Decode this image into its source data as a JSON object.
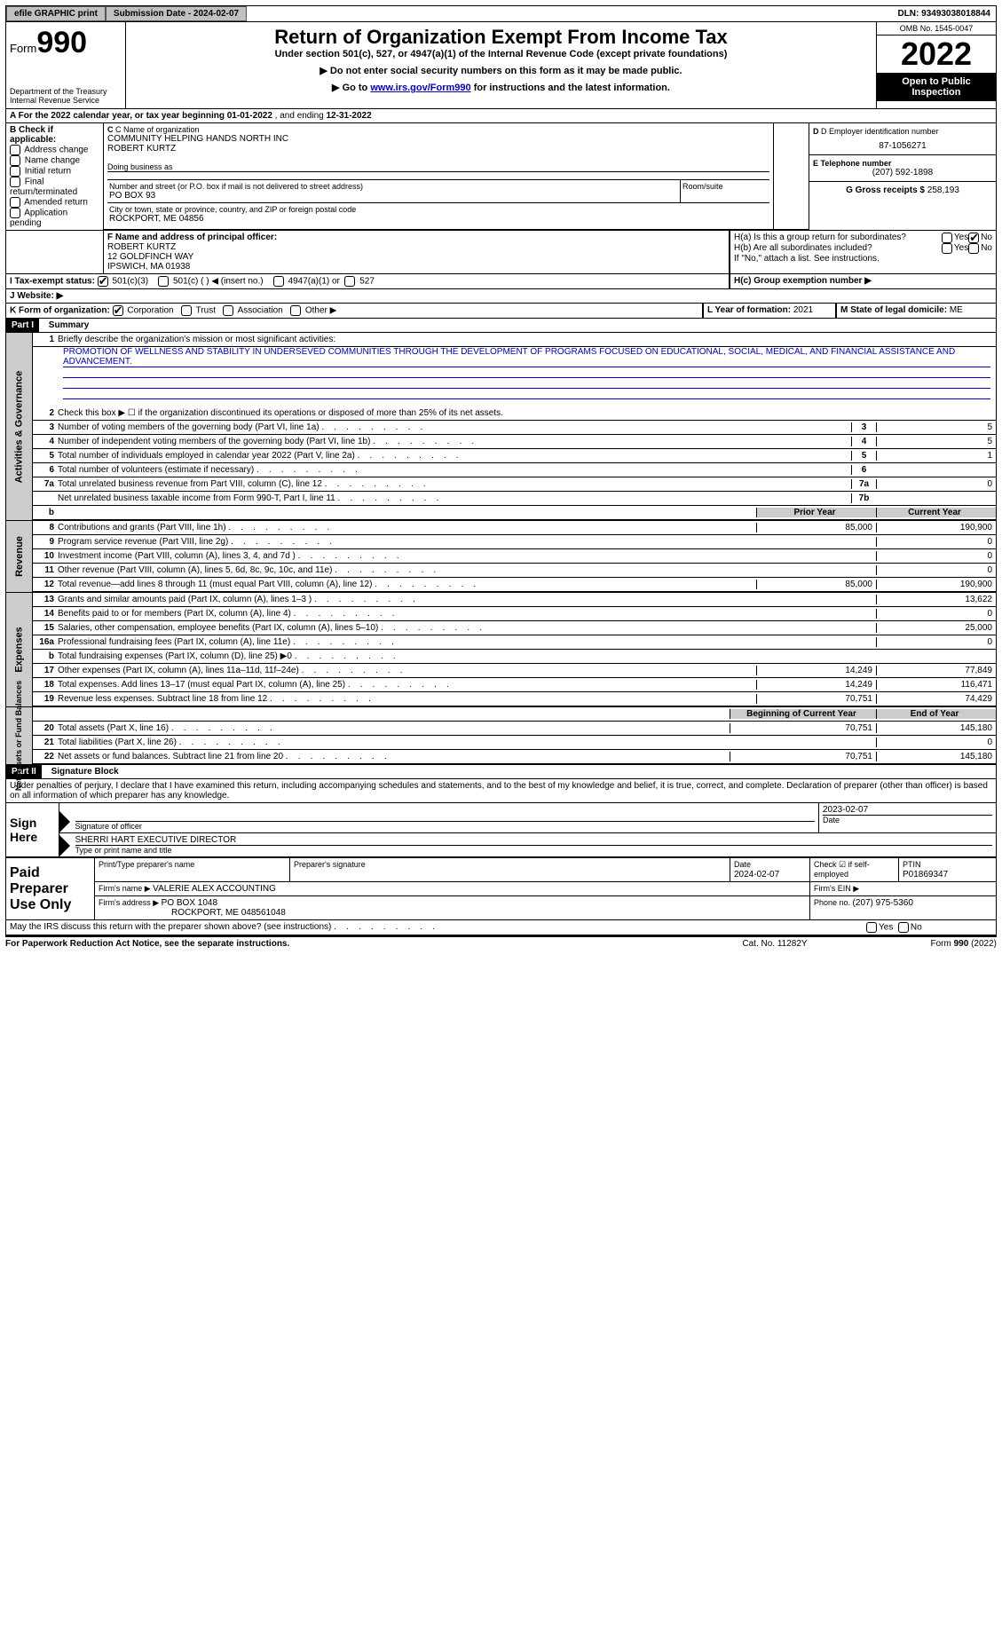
{
  "topbar": {
    "efile_btn": "efile GRAPHIC print",
    "submission_label": "Submission Date - 2024-02-07",
    "dln": "DLN: 93493038018844"
  },
  "header": {
    "form_label": "Form",
    "form_number": "990",
    "dept": "Department of the Treasury Internal Revenue Service",
    "title": "Return of Organization Exempt From Income Tax",
    "subtitle": "Under section 501(c), 527, or 4947(a)(1) of the Internal Revenue Code (except private foundations)",
    "note1": "▶ Do not enter social security numbers on this form as it may be made public.",
    "note2_pre": "▶ Go to ",
    "note2_link": "www.irs.gov/Form990",
    "note2_post": " for instructions and the latest information.",
    "omb": "OMB No. 1545-0047",
    "year": "2022",
    "inspect": "Open to Public Inspection"
  },
  "A": {
    "label": "A For the 2022 calendar year, or tax year beginning ",
    "begin": "01-01-2022",
    "mid": "    , and ending ",
    "end": "12-31-2022"
  },
  "B": {
    "title": "B Check if applicable:",
    "opts": [
      "Address change",
      "Name change",
      "Initial return",
      "Final return/terminated",
      "Amended return",
      "Application pending"
    ]
  },
  "C": {
    "name_label": "C Name of organization",
    "name1": "COMMUNITY HELPING HANDS NORTH INC",
    "name2": "ROBERT KURTZ",
    "dba": "Doing business as",
    "street_label": "Number and street (or P.O. box if mail is not delivered to street address)",
    "street": "PO BOX 93",
    "room": "Room/suite",
    "city_label": "City or town, state or province, country, and ZIP or foreign postal code",
    "city": "ROCKPORT, ME  04856"
  },
  "D": {
    "label": "D Employer identification number",
    "val": "87-1056271"
  },
  "E": {
    "label": "E Telephone number",
    "val": "(207) 592-1898"
  },
  "G": {
    "label": "G Gross receipts $ ",
    "val": "258,193"
  },
  "F": {
    "label": "F  Name and address of principal officer:",
    "n1": "ROBERT KURTZ",
    "n2": "12 GOLDFINCH WAY",
    "n3": "IPSWICH, MA  01938"
  },
  "H": {
    "a": "H(a)   Is this a group return for subordinates?",
    "b": "H(b)   Are all subordinates included?",
    "b_note": "If \"No,\" attach a list. See instructions.",
    "c": "H(c)   Group exemption number ▶",
    "yes": "Yes",
    "no": "No"
  },
  "I": {
    "label": "I   Tax-exempt status:",
    "o1": "501(c)(3)",
    "o2": "501(c) (  ) ◀ (insert no.)",
    "o3": "4947(a)(1) or",
    "o4": "527"
  },
  "J": {
    "label": "J   Website: ▶"
  },
  "K": {
    "label": "K Form of organization:",
    "o1": "Corporation",
    "o2": "Trust",
    "o3": "Association",
    "o4": "Other ▶"
  },
  "L": {
    "label": "L Year of formation: ",
    "val": "2021"
  },
  "M": {
    "label": "M State of legal domicile: ",
    "val": "ME"
  },
  "part1": {
    "title": "Part I",
    "heading": "Summary",
    "sidebar1": "Activities & Governance",
    "sidebar2": "Revenue",
    "sidebar3": "Expenses",
    "sidebar4": "Net Assets or Fund Balances",
    "l1": "Briefly describe the organization's mission or most significant activities:",
    "mission": "PROMOTION OF WELLNESS AND STABILITY IN UNDERSEVED COMMUNITIES THROUGH THE DEVELOPMENT OF PROGRAMS FOCUSED ON EDUCATIONAL, SOCIAL, MEDICAL, AND FINANCIAL ASSISTANCE AND ADVANCEMENT.",
    "l2": "Check this box ▶ ☐  if the organization discontinued its operations or disposed of more than 25% of its net assets.",
    "prior_h": "Prior Year",
    "current_h": "Current Year",
    "beg_h": "Beginning of Current Year",
    "end_h": "End of Year",
    "rows_simple": [
      {
        "n": "3",
        "t": "Number of voting members of the governing body (Part VI, line 1a)",
        "box": "3",
        "v": "5"
      },
      {
        "n": "4",
        "t": "Number of independent voting members of the governing body (Part VI, line 1b)",
        "box": "4",
        "v": "5"
      },
      {
        "n": "5",
        "t": "Total number of individuals employed in calendar year 2022 (Part V, line 2a)",
        "box": "5",
        "v": "1"
      },
      {
        "n": "6",
        "t": "Total number of volunteers (estimate if necessary)",
        "box": "6",
        "v": ""
      },
      {
        "n": "7a",
        "t": "Total unrelated business revenue from Part VIII, column (C), line 12",
        "box": "7a",
        "v": "0"
      },
      {
        "n": "",
        "t": "Net unrelated business taxable income from Form 990-T, Part I, line 11",
        "box": "7b",
        "v": ""
      }
    ],
    "rows_rev": [
      {
        "n": "8",
        "t": "Contributions and grants (Part VIII, line 1h)",
        "p": "85,000",
        "c": "190,900"
      },
      {
        "n": "9",
        "t": "Program service revenue (Part VIII, line 2g)",
        "p": "",
        "c": "0"
      },
      {
        "n": "10",
        "t": "Investment income (Part VIII, column (A), lines 3, 4, and 7d )",
        "p": "",
        "c": "0"
      },
      {
        "n": "11",
        "t": "Other revenue (Part VIII, column (A), lines 5, 6d, 8c, 9c, 10c, and 11e)",
        "p": "",
        "c": "0"
      },
      {
        "n": "12",
        "t": "Total revenue—add lines 8 through 11 (must equal Part VIII, column (A), line 12)",
        "p": "85,000",
        "c": "190,900"
      }
    ],
    "rows_exp": [
      {
        "n": "13",
        "t": "Grants and similar amounts paid (Part IX, column (A), lines 1–3 )",
        "p": "",
        "c": "13,622"
      },
      {
        "n": "14",
        "t": "Benefits paid to or for members (Part IX, column (A), line 4)",
        "p": "",
        "c": "0"
      },
      {
        "n": "15",
        "t": "Salaries, other compensation, employee benefits (Part IX, column (A), lines 5–10)",
        "p": "",
        "c": "25,000"
      },
      {
        "n": "16a",
        "t": "Professional fundraising fees (Part IX, column (A), line 11e)",
        "p": "",
        "c": "0"
      },
      {
        "n": "b",
        "t": "Total fundraising expenses (Part IX, column (D), line 25) ▶0",
        "p": "shade",
        "c": "shade"
      },
      {
        "n": "17",
        "t": "Other expenses (Part IX, column (A), lines 11a–11d, 11f–24e)",
        "p": "14,249",
        "c": "77,849"
      },
      {
        "n": "18",
        "t": "Total expenses. Add lines 13–17 (must equal Part IX, column (A), line 25)",
        "p": "14,249",
        "c": "116,471"
      },
      {
        "n": "19",
        "t": "Revenue less expenses. Subtract line 18 from line 12",
        "p": "70,751",
        "c": "74,429"
      }
    ],
    "rows_net": [
      {
        "n": "20",
        "t": "Total assets (Part X, line 16)",
        "p": "70,751",
        "c": "145,180"
      },
      {
        "n": "21",
        "t": "Total liabilities (Part X, line 26)",
        "p": "",
        "c": "0"
      },
      {
        "n": "22",
        "t": "Net assets or fund balances. Subtract line 21 from line 20",
        "p": "70,751",
        "c": "145,180"
      }
    ]
  },
  "part2": {
    "title": "Part II",
    "heading": "Signature Block",
    "perjury": "Under penalties of perjury, I declare that I have examined this return, including accompanying schedules and statements, and to the best of my knowledge and belief, it is true, correct, and complete. Declaration of preparer (other than officer) is based on all information of which preparer has any knowledge.",
    "sign_here": "Sign Here",
    "sig_of": "Signature of officer",
    "date_lbl": "Date",
    "sig_date": "2023-02-07",
    "typed": "SHERRI HART  EXECUTIVE DIRECTOR",
    "typed_lbl": "Type or print name and title",
    "paid": "Paid Preparer Use Only",
    "prep_name_lbl": "Print/Type preparer's name",
    "prep_sig_lbl": "Preparer's signature",
    "prep_date_lbl": "Date",
    "prep_date": "2024-02-07",
    "self_lbl": "Check ☑ if self-employed",
    "ptin_lbl": "PTIN",
    "ptin": "P01869347",
    "firm_name_lbl": "Firm's name      ▶ ",
    "firm_name": "VALERIE ALEX ACCOUNTING",
    "firm_ein_lbl": "Firm's EIN ▶",
    "firm_addr_lbl": "Firm's address ▶ ",
    "firm_addr1": "PO BOX 1048",
    "firm_addr2": "ROCKPORT, ME  048561048",
    "phone_lbl": "Phone no. ",
    "phone": "(207) 975-5360",
    "discuss": "May the IRS discuss this return with the preparer shown above? (see instructions)",
    "yes": "Yes",
    "no": "No"
  },
  "footer": {
    "left": "For Paperwork Reduction Act Notice, see the separate instructions.",
    "mid": "Cat. No. 11282Y",
    "right": "Form 990 (2022)"
  },
  "colors": {
    "shade": "#cccccc",
    "black": "#000000",
    "link": "#0000cc"
  }
}
